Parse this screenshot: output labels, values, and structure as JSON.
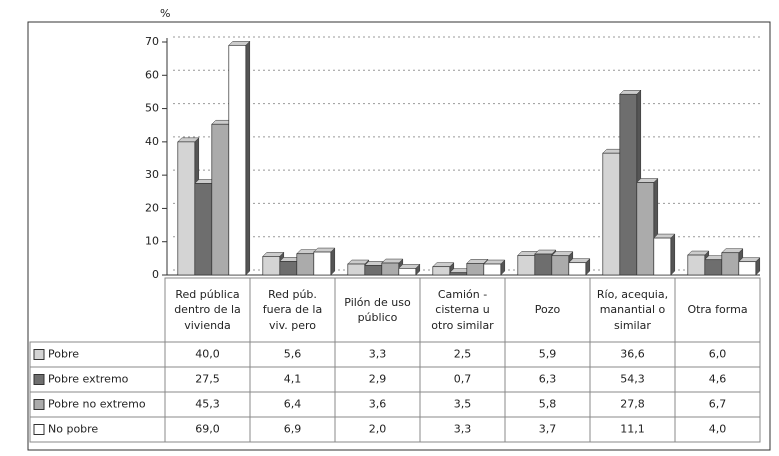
{
  "chart_data": {
    "type": "bar",
    "y_label": "%",
    "categories": [
      "Red pública dentro de la vivienda",
      "Red púb. fuera de la viv. pero",
      "Pilón de uso público",
      "Camión - cisterna u otro similar",
      "Pozo",
      "Río, acequia, manantial o similar",
      "Otra forma"
    ],
    "series": [
      {
        "name": "Pobre",
        "color": "#d4d4d4",
        "values": [
          40.0,
          5.6,
          3.3,
          2.5,
          5.9,
          36.6,
          6.0
        ],
        "value_labels": [
          "40,0",
          "5,6",
          "3,3",
          "2,5",
          "5,9",
          "36,6",
          "6,0"
        ]
      },
      {
        "name": "Pobre extremo",
        "color": "#6e6e6e",
        "values": [
          27.5,
          4.1,
          2.9,
          0.7,
          6.3,
          54.3,
          4.6
        ],
        "value_labels": [
          "27,5",
          "4,1",
          "2,9",
          "0,7",
          "6,3",
          "54,3",
          "4,6"
        ]
      },
      {
        "name": "Pobre no extremo",
        "color": "#ababab",
        "values": [
          45.3,
          6.4,
          3.6,
          3.5,
          5.8,
          27.8,
          6.7
        ],
        "value_labels": [
          "45,3",
          "6,4",
          "3,6",
          "3,5",
          "5,8",
          "27,8",
          "6,7"
        ]
      },
      {
        "name": "No pobre",
        "color": "#ffffff",
        "values": [
          69.0,
          6.9,
          2.0,
          3.3,
          3.7,
          11.1,
          4.0
        ],
        "value_labels": [
          "69,0",
          "6,9",
          "2,0",
          "3,3",
          "3,7",
          "11,1",
          "4,0"
        ]
      }
    ],
    "ylim": [
      0,
      70
    ],
    "yticks": [
      0,
      10,
      20,
      30,
      40,
      50,
      60,
      70
    ],
    "grid": true
  }
}
